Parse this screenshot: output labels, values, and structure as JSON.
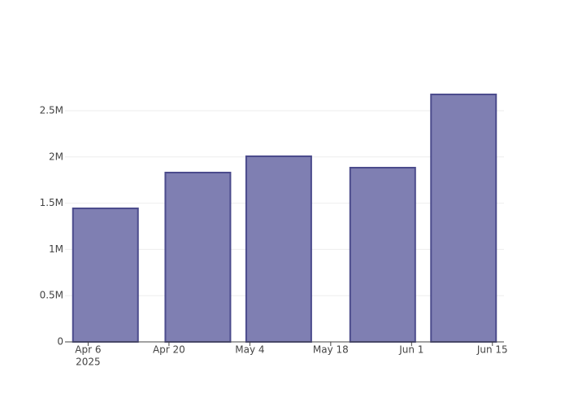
{
  "chart_data": {
    "type": "bar",
    "x": [
      "2025-04-09",
      "2025-04-25",
      "2025-05-09",
      "2025-05-27",
      "2025-06-10"
    ],
    "values": [
      1444000,
      1831000,
      2007000,
      1884000,
      2676000
    ],
    "color": "#7f7fb2",
    "xlim": [
      "2025-04-02",
      "2025-06-17"
    ],
    "xticks": [
      {
        "value": "2025-04-06",
        "label": "Apr 6"
      },
      {
        "value": "2025-04-20",
        "label": "Apr 20"
      },
      {
        "value": "2025-05-04",
        "label": "May 4"
      },
      {
        "value": "2025-05-18",
        "label": "May 18"
      },
      {
        "value": "2025-06-01",
        "label": "Jun 1"
      },
      {
        "value": "2025-06-15",
        "label": "Jun 15"
      }
    ],
    "x_year_label": "2025",
    "ylim": [
      0,
      2817000
    ],
    "yticks": [
      0,
      {
        "value": 500000,
        "label": "0.5M"
      },
      {
        "value": 1000000,
        "label": "1M"
      },
      {
        "value": 1500000,
        "label": "1.5M"
      },
      {
        "value": 2000000,
        "label": "2M"
      },
      {
        "value": 2500000,
        "label": "2.5M"
      }
    ],
    "grid": true
  }
}
